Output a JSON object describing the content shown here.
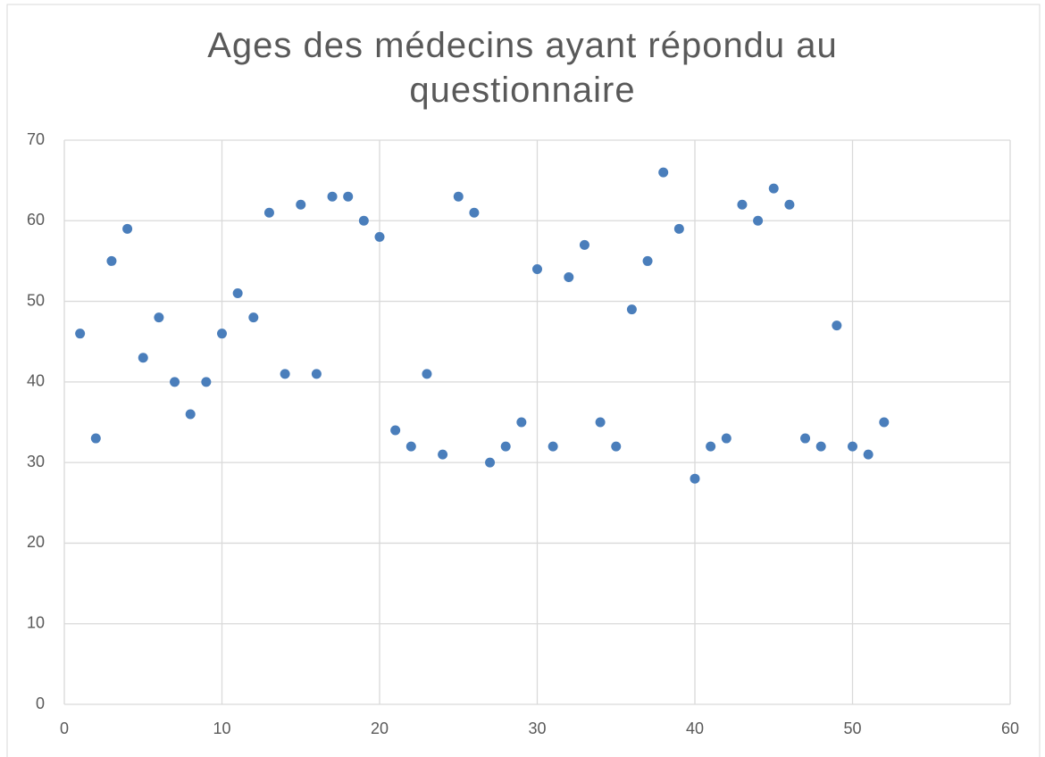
{
  "chart_data": {
    "type": "scatter",
    "title": "Ages des médecins ayant répondu au questionnaire",
    "x": [
      1,
      2,
      3,
      4,
      5,
      6,
      7,
      8,
      9,
      10,
      11,
      12,
      13,
      14,
      15,
      16,
      17,
      18,
      19,
      20,
      21,
      22,
      23,
      24,
      25,
      26,
      27,
      28,
      29,
      30,
      31,
      32,
      33,
      34,
      35,
      36,
      37,
      38,
      39,
      40,
      41,
      42,
      43,
      44,
      45,
      46,
      47,
      48,
      49,
      50,
      51,
      52
    ],
    "values": [
      46,
      33,
      55,
      59,
      43,
      48,
      40,
      36,
      40,
      46,
      51,
      48,
      61,
      41,
      62,
      41,
      63,
      63,
      60,
      58,
      34,
      32,
      41,
      31,
      63,
      61,
      30,
      32,
      35,
      54,
      32,
      53,
      57,
      35,
      32,
      49,
      55,
      66,
      59,
      28,
      32,
      33,
      62,
      60,
      64,
      62,
      33,
      32,
      47,
      32,
      31,
      35
    ],
    "color": "#4a7ebb",
    "xlim": [
      0,
      60
    ],
    "xticks": [
      0,
      10,
      20,
      30,
      40,
      50,
      60
    ],
    "ylim": [
      0,
      70
    ],
    "yticks": [
      0,
      10,
      20,
      30,
      40,
      50,
      60,
      70
    ],
    "grid": true
  }
}
